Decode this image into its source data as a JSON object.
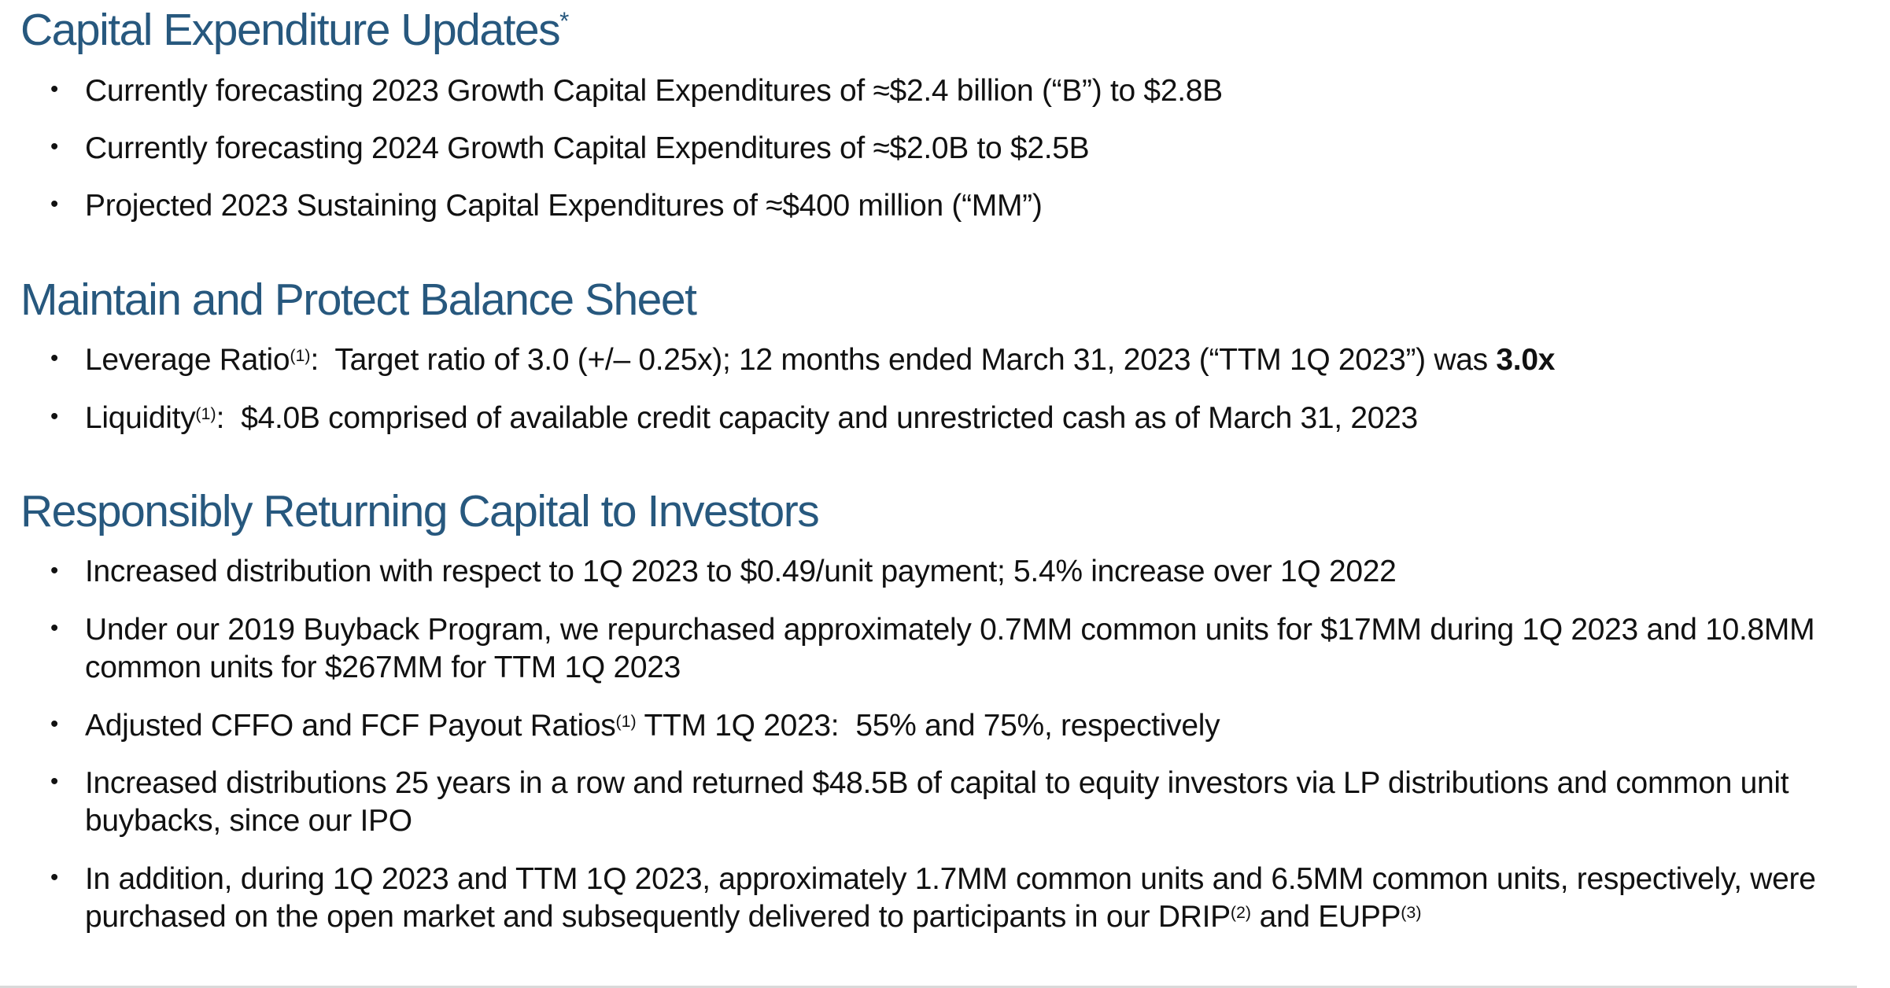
{
  "theme": {
    "heading_color": "#27587E",
    "body_color": "#111111",
    "background": "#FFFFFF"
  },
  "sections": [
    {
      "heading": "Capital Expenditure Updates",
      "heading_sup": "*",
      "bullets": [
        {
          "text": "Currently forecasting 2023 Growth Capital Expenditures of ≈$2.4 billion (“B”) to $2.8B"
        },
        {
          "text": "Currently forecasting 2024 Growth Capital Expenditures of ≈$2.0B to $2.5B"
        },
        {
          "text": "Projected 2023 Sustaining Capital Expenditures of ≈$400 million (“MM”)"
        }
      ]
    },
    {
      "heading": "Maintain and Protect Balance Sheet",
      "bullets": [
        {
          "pre": "Leverage Ratio",
          "sup": "(1)",
          "post": ":  Target ratio of 3.0 (+/– 0.25x); 12 months ended March 31, 2023 (“TTM 1Q 2023”) was ",
          "bold": "3.0x"
        },
        {
          "pre": "Liquidity",
          "sup": "(1)",
          "post": ":  $4.0B comprised of available credit capacity and unrestricted cash as of March 31, 2023"
        }
      ]
    },
    {
      "heading": "Responsibly Returning Capital to Investors",
      "bullets": [
        {
          "text": "Increased distribution with respect to 1Q 2023 to $0.49/unit payment; 5.4% increase over 1Q 2022"
        },
        {
          "text": "Under our 2019 Buyback Program, we repurchased approximately 0.7MM common units for $17MM during 1Q 2023 and 10.8MM common units for $267MM for TTM 1Q 2023"
        },
        {
          "pre": "Adjusted CFFO and FCF Payout Ratios",
          "sup": "(1)",
          "post": " TTM 1Q 2023:  55% and 75%, respectively"
        },
        {
          "text": "Increased distributions 25 years in a row and returned $48.5B of capital to equity investors via LP distributions and common unit buybacks, since our IPO"
        },
        {
          "pre": "In addition, during 1Q 2023 and TTM 1Q 2023, approximately 1.7MM common units and 6.5MM common units, respectively, were purchased on the open market and subsequently delivered to participants in our DRIP",
          "sup": "(2)",
          "mid": " and EUPP",
          "sup2": "(3)"
        }
      ]
    }
  ]
}
